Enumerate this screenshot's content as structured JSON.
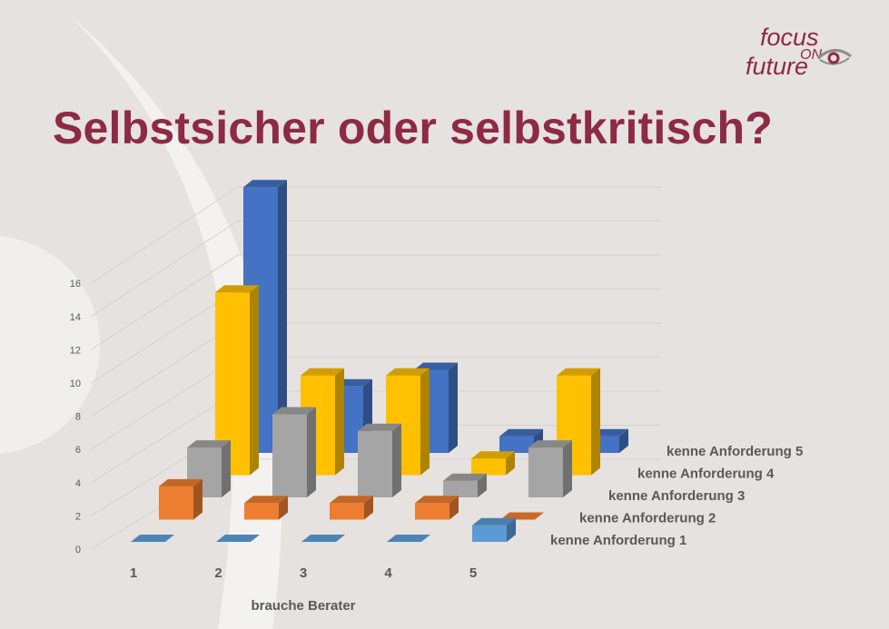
{
  "logo": {
    "word1": "focus",
    "word2": "ON",
    "word3": "future"
  },
  "title": "Selbstsicher oder selbstkritisch?",
  "chart_data": {
    "type": "bar",
    "subtype": "3d-column",
    "categories": [
      "1",
      "2",
      "3",
      "4",
      "5"
    ],
    "xlabel": "brauche Berater",
    "ylim": [
      0,
      16
    ],
    "yticks": [
      0,
      2,
      4,
      6,
      8,
      10,
      12,
      14,
      16
    ],
    "grid": true,
    "series": [
      {
        "name": "kenne Anforderung 1",
        "color": "#5b9bd5",
        "values": [
          0,
          0,
          0,
          0,
          1
        ]
      },
      {
        "name": "kenne Anforderung 2",
        "color": "#ed7d31",
        "values": [
          2,
          1,
          1,
          1,
          0
        ]
      },
      {
        "name": "kenne Anforderung 3",
        "color": "#a5a5a5",
        "values": [
          3,
          5,
          4,
          1,
          3
        ]
      },
      {
        "name": "kenne Anforderung 4",
        "color": "#ffc000",
        "values": [
          11,
          6,
          6,
          1,
          6
        ]
      },
      {
        "name": "kenne Anforderung 5",
        "color": "#4472c4",
        "values": [
          16,
          4,
          5,
          1,
          1
        ]
      }
    ]
  }
}
